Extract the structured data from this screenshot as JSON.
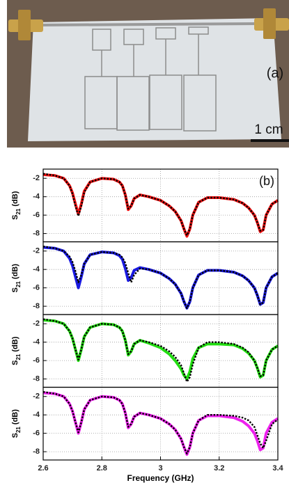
{
  "photo": {
    "label": "(a)",
    "scale_bar": "1 cm"
  },
  "chart_data": [
    {
      "type": "line",
      "annotation": "(b)",
      "ylabel_parts": [
        "S",
        "21",
        "(dB)"
      ],
      "xlim": [
        2.6,
        3.4
      ],
      "ylim": [
        -8.9,
        -1.0
      ],
      "yticks": [
        -2,
        -4,
        -6,
        -8
      ],
      "grid": true,
      "show_xticklabels": false,
      "x": [
        2.6,
        2.64,
        2.67,
        2.69,
        2.7,
        2.71,
        2.72,
        2.73,
        2.74,
        2.76,
        2.8,
        2.84,
        2.86,
        2.87,
        2.88,
        2.89,
        2.9,
        2.91,
        2.93,
        2.96,
        3.0,
        3.03,
        3.05,
        3.07,
        3.08,
        3.09,
        3.1,
        3.11,
        3.13,
        3.16,
        3.2,
        3.25,
        3.28,
        3.3,
        3.32,
        3.33,
        3.34,
        3.35,
        3.36,
        3.38,
        3.4
      ],
      "series": [
        {
          "color": "#ee1111",
          "style": "solid",
          "values": [
            -1.6,
            -1.7,
            -2.0,
            -2.8,
            -3.6,
            -4.8,
            -5.9,
            -4.8,
            -3.4,
            -2.4,
            -2.0,
            -2.1,
            -2.4,
            -2.8,
            -3.8,
            -5.4,
            -5.0,
            -4.2,
            -3.8,
            -4.0,
            -4.4,
            -5.0,
            -5.6,
            -6.6,
            -7.5,
            -8.3,
            -7.5,
            -6.0,
            -4.6,
            -4.1,
            -4.1,
            -4.3,
            -4.7,
            -5.2,
            -6.0,
            -6.8,
            -7.8,
            -7.6,
            -6.0,
            -4.8,
            -4.4
          ]
        },
        {
          "color": "#000000",
          "style": "dotted",
          "values": [
            -1.5,
            -1.7,
            -2.0,
            -2.8,
            -3.7,
            -5.0,
            -6.1,
            -5.0,
            -3.5,
            -2.4,
            -2.0,
            -2.1,
            -2.4,
            -2.8,
            -3.8,
            -5.3,
            -5.0,
            -4.2,
            -3.8,
            -4.0,
            -4.4,
            -5.0,
            -5.6,
            -6.6,
            -7.5,
            -8.2,
            -7.5,
            -6.0,
            -4.6,
            -4.1,
            -4.1,
            -4.3,
            -4.7,
            -5.2,
            -6.0,
            -6.8,
            -7.7,
            -7.6,
            -6.0,
            -4.8,
            -4.4
          ]
        }
      ]
    },
    {
      "type": "line",
      "ylabel_parts": [
        "S",
        "21",
        "(dB)"
      ],
      "xlim": [
        2.6,
        3.4
      ],
      "ylim": [
        -8.9,
        -1.0
      ],
      "yticks": [
        -2,
        -4,
        -6,
        -8
      ],
      "grid": true,
      "show_xticklabels": false,
      "x": [
        2.6,
        2.64,
        2.67,
        2.69,
        2.7,
        2.71,
        2.72,
        2.73,
        2.74,
        2.76,
        2.8,
        2.84,
        2.86,
        2.87,
        2.88,
        2.89,
        2.9,
        2.91,
        2.93,
        2.96,
        3.0,
        3.03,
        3.05,
        3.07,
        3.08,
        3.09,
        3.1,
        3.11,
        3.13,
        3.16,
        3.2,
        3.25,
        3.28,
        3.3,
        3.32,
        3.33,
        3.34,
        3.35,
        3.36,
        3.38,
        3.4
      ],
      "series": [
        {
          "color": "#1a1ae0",
          "style": "solid",
          "values": [
            -1.6,
            -1.7,
            -2.0,
            -2.8,
            -3.6,
            -4.8,
            -6.0,
            -4.8,
            -3.4,
            -2.4,
            -2.1,
            -2.2,
            -2.5,
            -2.9,
            -3.9,
            -5.2,
            -4.9,
            -4.1,
            -3.8,
            -4.0,
            -4.4,
            -5.0,
            -5.6,
            -6.6,
            -7.5,
            -8.2,
            -7.5,
            -6.0,
            -4.6,
            -4.1,
            -4.1,
            -4.3,
            -4.7,
            -5.2,
            -6.0,
            -6.8,
            -7.8,
            -7.6,
            -6.0,
            -4.8,
            -4.4
          ]
        },
        {
          "color": "#000000",
          "style": "dotted",
          "values": [
            -1.5,
            -1.7,
            -2.0,
            -2.6,
            -3.2,
            -4.2,
            -5.4,
            -4.6,
            -3.4,
            -2.4,
            -2.1,
            -2.2,
            -2.4,
            -2.7,
            -3.3,
            -4.4,
            -5.4,
            -4.6,
            -3.9,
            -4.0,
            -4.4,
            -5.0,
            -5.6,
            -6.6,
            -7.5,
            -8.2,
            -7.5,
            -6.0,
            -4.6,
            -4.1,
            -4.1,
            -4.3,
            -4.7,
            -5.2,
            -6.0,
            -6.8,
            -7.8,
            -7.6,
            -6.0,
            -4.8,
            -4.4
          ]
        }
      ]
    },
    {
      "type": "line",
      "ylabel_parts": [
        "S",
        "21",
        "(dB)"
      ],
      "xlim": [
        2.6,
        3.4
      ],
      "ylim": [
        -8.9,
        -1.0
      ],
      "yticks": [
        -2,
        -4,
        -6,
        -8
      ],
      "grid": true,
      "show_xticklabels": false,
      "x": [
        2.6,
        2.64,
        2.67,
        2.69,
        2.7,
        2.71,
        2.72,
        2.73,
        2.74,
        2.76,
        2.8,
        2.84,
        2.86,
        2.87,
        2.88,
        2.89,
        2.9,
        2.91,
        2.93,
        2.96,
        3.0,
        3.03,
        3.05,
        3.07,
        3.08,
        3.09,
        3.1,
        3.11,
        3.13,
        3.16,
        3.2,
        3.25,
        3.28,
        3.3,
        3.32,
        3.33,
        3.34,
        3.35,
        3.36,
        3.38,
        3.4
      ],
      "series": [
        {
          "color": "#22dd11",
          "style": "solid",
          "values": [
            -1.6,
            -1.7,
            -2.0,
            -2.8,
            -3.6,
            -4.8,
            -6.0,
            -4.8,
            -3.4,
            -2.4,
            -2.0,
            -2.1,
            -2.4,
            -2.8,
            -3.8,
            -5.4,
            -5.0,
            -4.2,
            -3.8,
            -4.1,
            -4.6,
            -5.3,
            -6.0,
            -6.9,
            -7.6,
            -8.0,
            -7.2,
            -5.8,
            -4.6,
            -4.2,
            -4.2,
            -4.3,
            -4.7,
            -5.2,
            -6.0,
            -6.8,
            -7.8,
            -7.6,
            -6.0,
            -4.8,
            -4.4
          ]
        },
        {
          "color": "#000000",
          "style": "dotted",
          "values": [
            -1.5,
            -1.7,
            -2.0,
            -2.8,
            -3.6,
            -4.8,
            -5.9,
            -4.8,
            -3.4,
            -2.4,
            -2.0,
            -2.1,
            -2.4,
            -2.8,
            -3.8,
            -5.3,
            -5.0,
            -4.2,
            -3.8,
            -4.0,
            -4.4,
            -5.0,
            -5.6,
            -6.5,
            -7.4,
            -8.3,
            -7.8,
            -6.4,
            -4.6,
            -4.0,
            -4.0,
            -4.2,
            -4.6,
            -5.1,
            -6.0,
            -6.8,
            -7.7,
            -7.6,
            -6.0,
            -4.8,
            -4.4
          ]
        }
      ]
    },
    {
      "type": "line",
      "ylabel_parts": [
        "S",
        "21",
        "(dB)"
      ],
      "xlabel": "Frequency (GHz)",
      "xlim": [
        2.6,
        3.4
      ],
      "xticks": [
        2.6,
        2.8,
        3,
        3.2,
        3.4
      ],
      "ylim": [
        -8.9,
        -1.0
      ],
      "yticks": [
        -2,
        -4,
        -6,
        -8
      ],
      "grid": true,
      "show_xticklabels": true,
      "x": [
        2.6,
        2.64,
        2.67,
        2.69,
        2.7,
        2.71,
        2.72,
        2.73,
        2.74,
        2.76,
        2.8,
        2.84,
        2.86,
        2.87,
        2.88,
        2.89,
        2.9,
        2.91,
        2.93,
        2.96,
        3.0,
        3.03,
        3.05,
        3.07,
        3.08,
        3.09,
        3.1,
        3.11,
        3.13,
        3.16,
        3.2,
        3.25,
        3.28,
        3.3,
        3.32,
        3.33,
        3.34,
        3.35,
        3.36,
        3.38,
        3.4
      ],
      "series": [
        {
          "color": "#ee22ee",
          "style": "solid",
          "values": [
            -1.6,
            -1.7,
            -2.0,
            -2.8,
            -3.6,
            -4.8,
            -6.0,
            -4.8,
            -3.4,
            -2.4,
            -2.0,
            -2.1,
            -2.4,
            -2.8,
            -3.8,
            -5.4,
            -5.0,
            -4.2,
            -3.8,
            -4.0,
            -4.4,
            -5.0,
            -5.6,
            -6.6,
            -7.5,
            -8.3,
            -7.5,
            -6.0,
            -4.6,
            -4.1,
            -4.1,
            -4.3,
            -4.7,
            -5.2,
            -6.0,
            -6.8,
            -7.8,
            -7.6,
            -6.0,
            -4.8,
            -4.4
          ]
        },
        {
          "color": "#000000",
          "style": "dotted",
          "values": [
            -1.5,
            -1.7,
            -2.0,
            -2.8,
            -3.6,
            -4.8,
            -5.9,
            -4.8,
            -3.4,
            -2.4,
            -2.0,
            -2.1,
            -2.4,
            -2.8,
            -3.8,
            -5.3,
            -5.0,
            -4.2,
            -3.8,
            -4.0,
            -4.4,
            -5.0,
            -5.6,
            -6.6,
            -7.5,
            -8.2,
            -7.5,
            -6.0,
            -4.6,
            -4.0,
            -4.0,
            -4.1,
            -4.3,
            -4.6,
            -5.3,
            -6.2,
            -7.1,
            -7.6,
            -6.8,
            -5.0,
            -4.5
          ]
        }
      ]
    }
  ]
}
